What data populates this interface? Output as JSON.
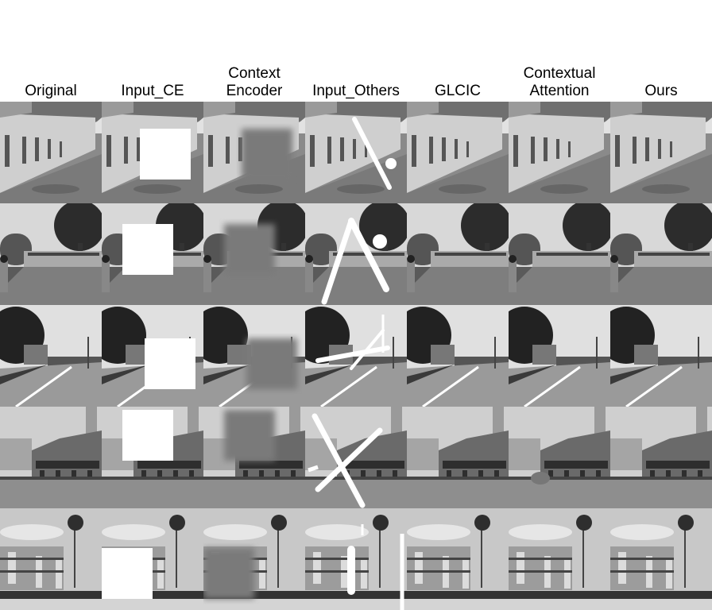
{
  "figure": {
    "columns": [
      "Original",
      "Input_CE",
      "Context\nEncoder",
      "Input_Others",
      "GLCIC",
      "Contextual\nAttention",
      "Ours"
    ],
    "rows": [
      {
        "scene": "street-building",
        "icon": "photo"
      },
      {
        "scene": "tree-road",
        "icon": "photo"
      },
      {
        "scene": "road-trees",
        "icon": "photo"
      },
      {
        "scene": "shophouses",
        "icon": "photo"
      },
      {
        "scene": "palm-buildings",
        "icon": "photo"
      }
    ],
    "colors": {
      "background": "#ffffff",
      "mask": "#ffffff",
      "text": "#000000"
    }
  }
}
